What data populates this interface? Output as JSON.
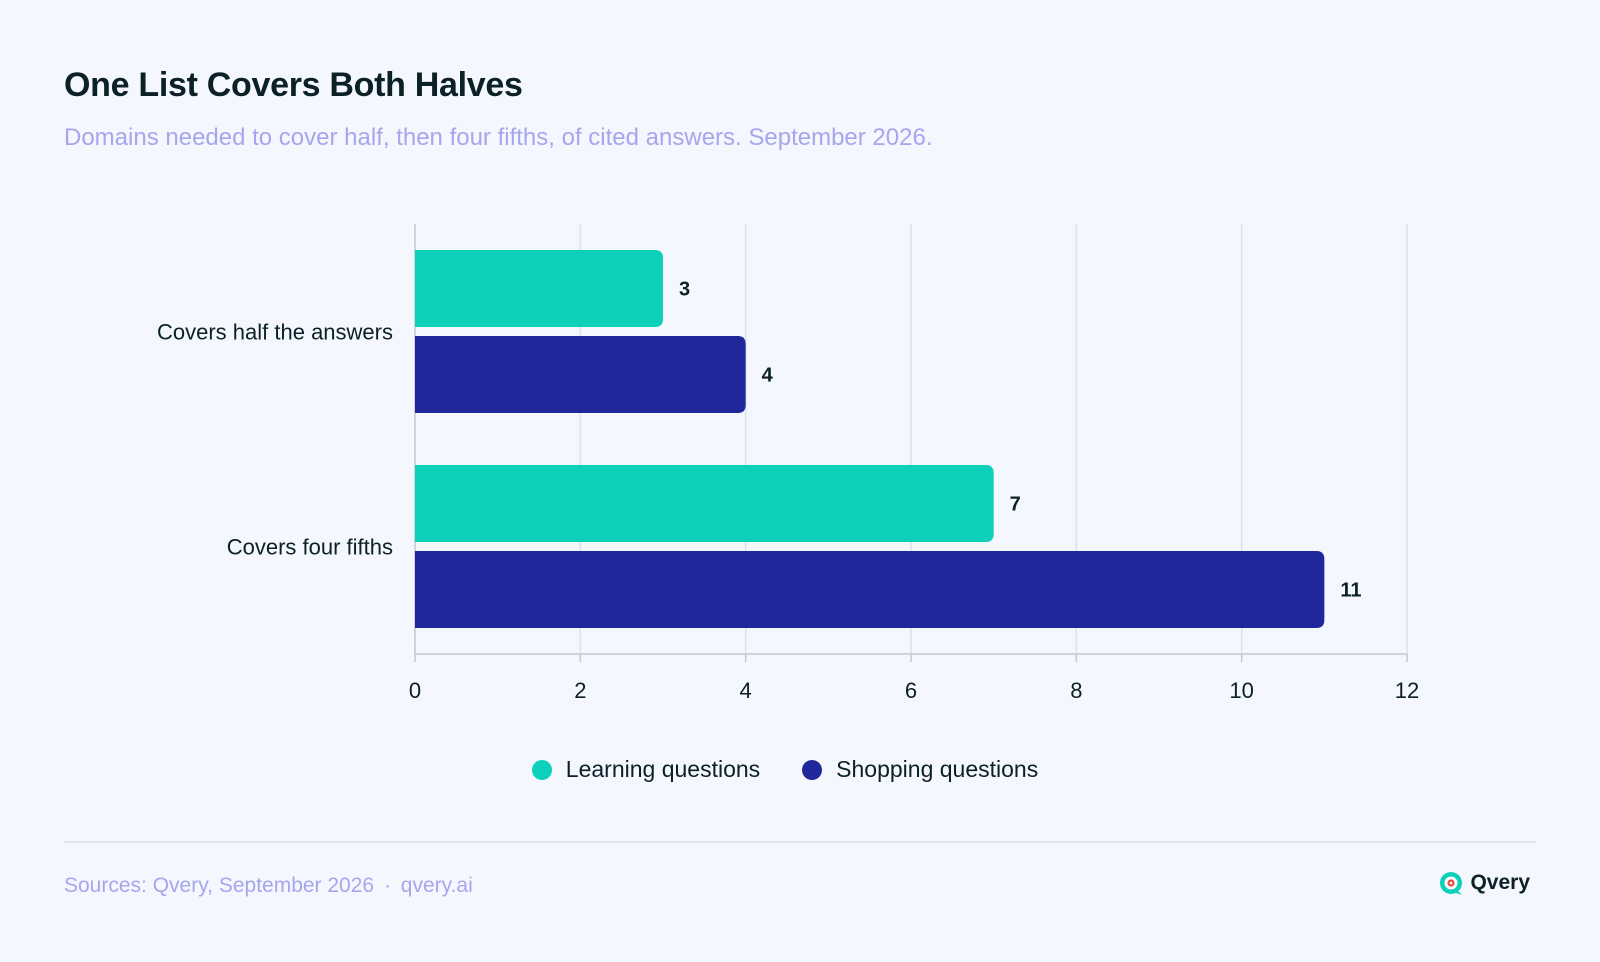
{
  "header": {
    "title": "One List Covers Both Halves",
    "subtitle": "Domains needed to cover half, then four fifths, of cited answers. September 2026."
  },
  "chart_data": {
    "type": "bar",
    "orientation": "horizontal",
    "categories": [
      "Covers half the answers",
      "Covers four fifths"
    ],
    "series": [
      {
        "name": "Learning questions",
        "values": [
          3,
          7
        ],
        "color": "#0dd0bb"
      },
      {
        "name": "Shopping questions",
        "values": [
          4,
          11
        ],
        "color": "#20279b"
      }
    ],
    "xlim": [
      0,
      12
    ],
    "xticks": [
      0,
      2,
      4,
      6,
      8,
      10,
      12
    ],
    "grid": true,
    "legend_position": "bottom-center",
    "data_labels": true
  },
  "footer": {
    "source": "Sources: Qvery, September 2026",
    "separator": "·",
    "site": "qvery.ai",
    "brand": "Qvery"
  },
  "colors": {
    "background": "#f4f7fd",
    "title": "#0b2027",
    "subtitle": "#a7a6ec",
    "grid": "#dde1ec",
    "axis": "#c2c7d2"
  },
  "icons": {
    "brand": "qvery-logo-icon"
  }
}
